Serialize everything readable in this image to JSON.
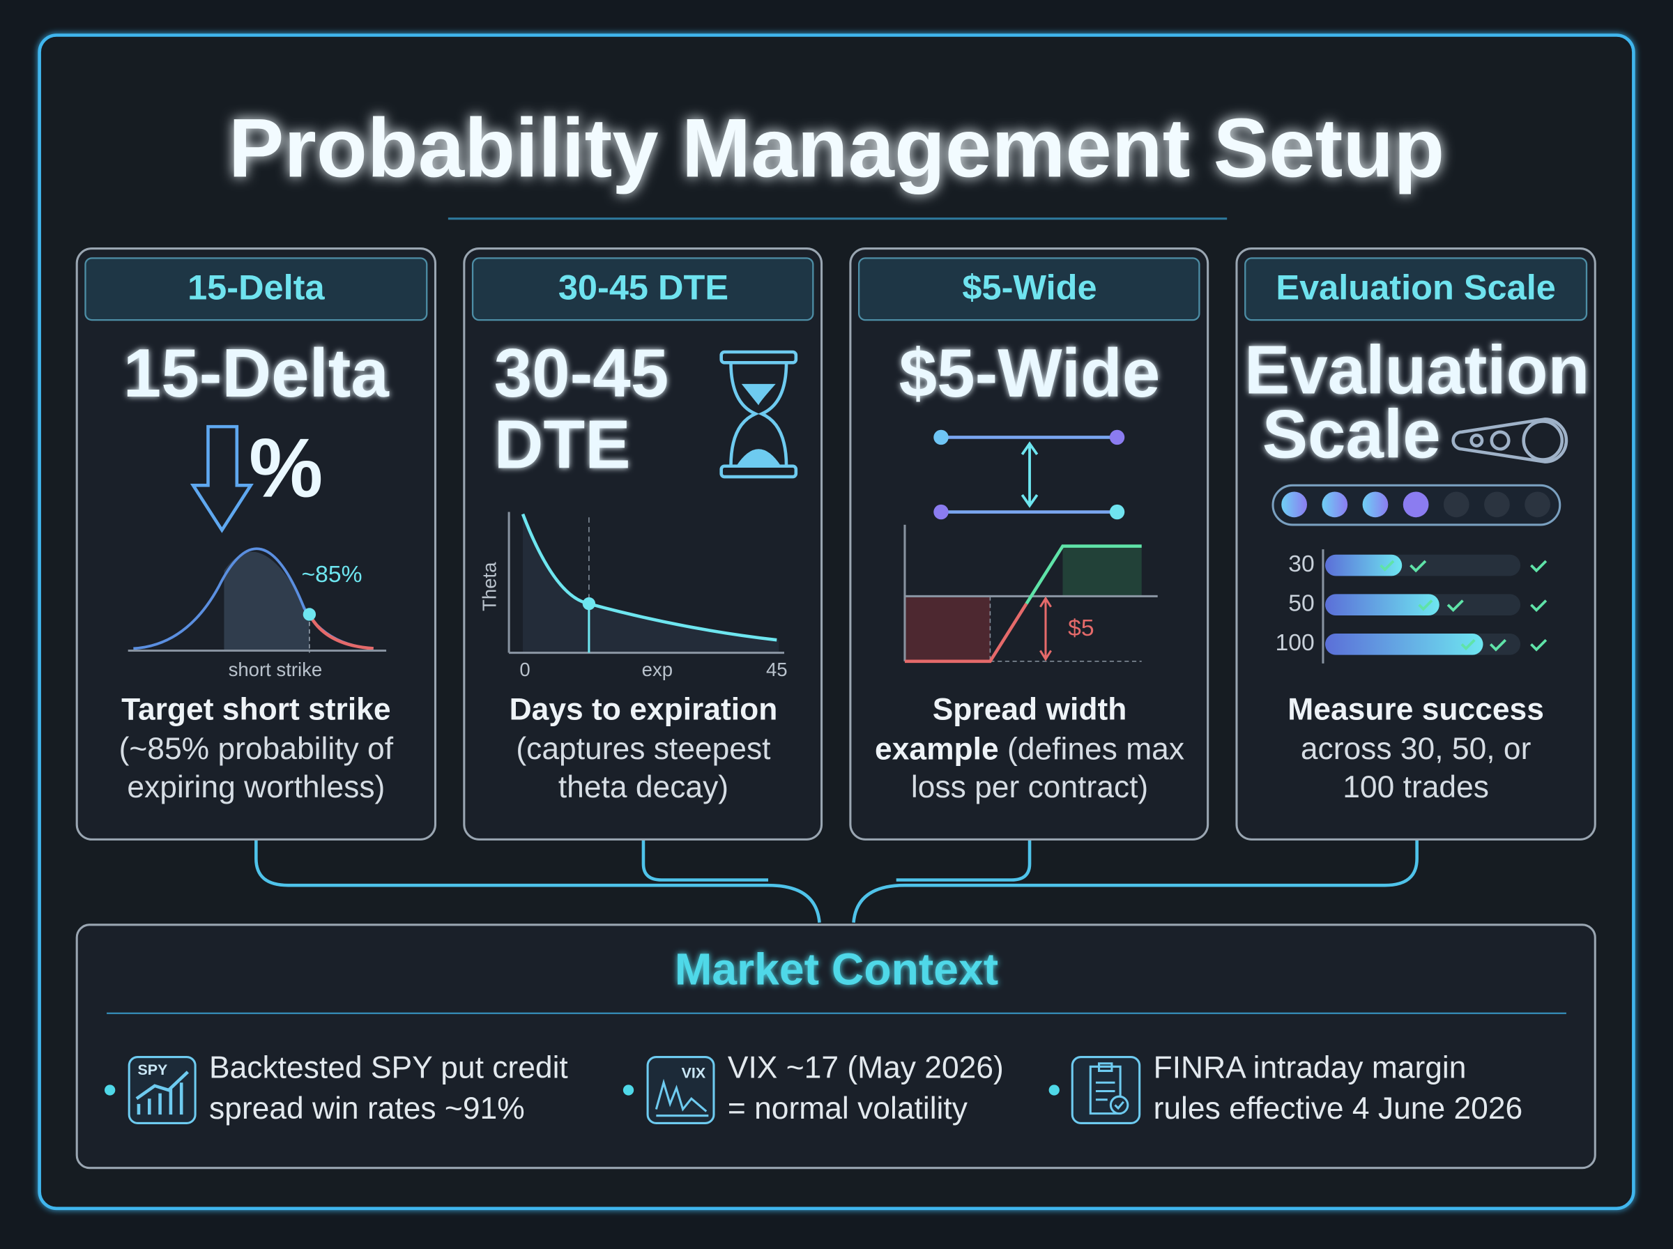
{
  "title": "Probability Management Setup",
  "cards": [
    {
      "header": "15-Delta",
      "heading": [
        "15-Delta"
      ],
      "symbol": "%",
      "probability_label": "~85%",
      "axis_label": "short strike",
      "description": [
        "Target short strike",
        "(~85% probability of",
        "expiring worthless)"
      ]
    },
    {
      "header": "30-45 DTE",
      "heading": [
        "30-45",
        "DTE"
      ],
      "y_axis_label": "Theta",
      "x_labels": [
        "0",
        "exp",
        "45"
      ],
      "description": [
        "Days to expiration",
        "(captures steepest",
        "theta decay)"
      ]
    },
    {
      "header": "$5-Wide",
      "heading": [
        "$5-Wide"
      ],
      "width_label": "$5",
      "description": [
        "Spread width",
        "example",
        " (defines max",
        "loss per contract)"
      ]
    },
    {
      "header": "Evaluation Scale",
      "heading": [
        "Evaluation",
        "Scale"
      ],
      "trade_counts": [
        "30",
        "50",
        "100"
      ],
      "description": [
        "Measure success",
        "across 30, 50, or",
        "100 trades"
      ]
    }
  ],
  "context": {
    "title": "Market Context",
    "items": [
      {
        "icon": "SPY",
        "lines": [
          "Backtested SPY put credit",
          "spread win rates ~91%"
        ]
      },
      {
        "icon": "VIX",
        "lines": [
          "VIX ~17 (May 2026)",
          "= normal volatility"
        ]
      },
      {
        "lines": [
          "FINRA intraday margin",
          "rules effective 4 June 2026"
        ]
      }
    ]
  }
}
